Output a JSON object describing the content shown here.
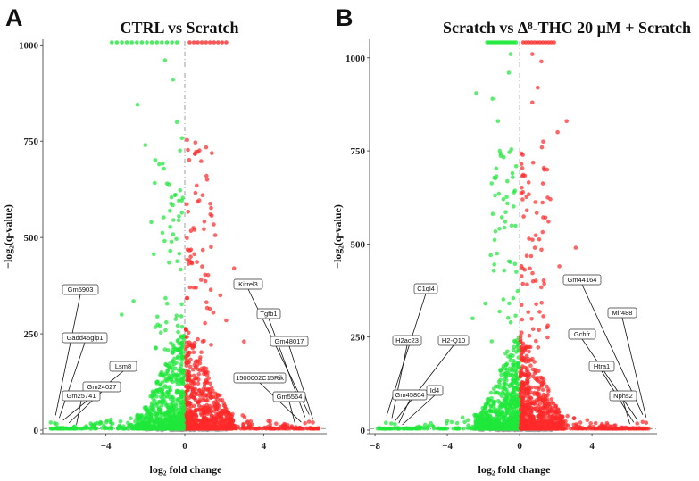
{
  "colors": {
    "up": "#ff2a2a",
    "down": "#1ee83a",
    "ns": "#9a9a9a"
  },
  "chart_data": [
    {
      "type": "scatter",
      "panel": "A",
      "title": "CTRL vs Scratch",
      "title_parts": [],
      "xlabel": "log₂ fold change",
      "ylabel": "−log₂(q-value)",
      "xlim": [
        -7.2,
        7.2
      ],
      "ylim": [
        0,
        1010
      ],
      "xticks": [
        -4,
        0,
        4
      ],
      "yticks": [
        0,
        250,
        500,
        750,
        1000
      ],
      "seed": 11,
      "points": [
        {
          "x": -2.4,
          "y": 845,
          "g": "down"
        },
        {
          "x": -1.0,
          "y": 960,
          "g": "down"
        },
        {
          "x": -0.6,
          "y": 910,
          "g": "down"
        },
        {
          "x": -0.4,
          "y": 800,
          "g": "down"
        },
        {
          "x": -2.0,
          "y": 740,
          "g": "down"
        },
        {
          "x": -1.3,
          "y": 690,
          "g": "down"
        },
        {
          "x": -0.9,
          "y": 640,
          "g": "down"
        },
        {
          "x": -0.5,
          "y": 610,
          "g": "down"
        },
        {
          "x": -2.6,
          "y": 335,
          "g": "down"
        },
        {
          "x": -3.2,
          "y": 300,
          "g": "down"
        },
        {
          "x": -1.7,
          "y": 540,
          "g": "down"
        },
        {
          "x": -0.3,
          "y": 555,
          "g": "down"
        },
        {
          "x": 0.6,
          "y": 635,
          "g": "up"
        },
        {
          "x": 0.9,
          "y": 610,
          "g": "up"
        },
        {
          "x": 1.1,
          "y": 660,
          "g": "up"
        },
        {
          "x": 2.5,
          "y": 420,
          "g": "up"
        },
        {
          "x": 0.3,
          "y": 450,
          "g": "up"
        },
        {
          "x": 0.25,
          "y": 440,
          "g": "up"
        },
        {
          "x": 1.3,
          "y": 560,
          "g": "up"
        },
        {
          "x": 1.8,
          "y": 350,
          "g": "up"
        },
        {
          "x": 2.1,
          "y": 285,
          "g": "up"
        },
        {
          "x": 0.5,
          "y": 520,
          "g": "up"
        },
        {
          "x": 3.0,
          "y": 230,
          "g": "up"
        },
        {
          "x": -6.8,
          "y": 20,
          "g": "down"
        },
        {
          "x": -6.6,
          "y": 18,
          "g": "down"
        },
        {
          "x": -6.5,
          "y": 16,
          "g": "down"
        },
        {
          "x": 6.3,
          "y": 22,
          "g": "up"
        },
        {
          "x": 6.5,
          "y": 20,
          "g": "up"
        },
        {
          "x": 6.1,
          "y": 18,
          "g": "up"
        }
      ],
      "top_hits_down": 14,
      "top_hits_up": 10,
      "top_hits_down_range": [
        -3.7,
        -0.4
      ],
      "top_hits_up_range": [
        0.25,
        2.1
      ],
      "labels": [
        {
          "text": "Gm5903",
          "x": -6.6,
          "y": 20
        },
        {
          "text": "Gadd45gip1",
          "x": -6.4,
          "y": 18
        },
        {
          "text": "Lsm8",
          "x": -6.2,
          "y": 16
        },
        {
          "text": "Gm24027",
          "x": -5.9,
          "y": 14
        },
        {
          "text": "Gm25741",
          "x": -5.5,
          "y": 12
        },
        {
          "text": "Kirrel3",
          "x": 6.3,
          "y": 22
        },
        {
          "text": "Tgfb1",
          "x": 6.1,
          "y": 20
        },
        {
          "text": "Gm48017",
          "x": 6.5,
          "y": 18
        },
        {
          "text": "1500002C15Rik",
          "x": 5.9,
          "y": 16
        },
        {
          "text": "Gm5564",
          "x": 5.6,
          "y": 14
        }
      ]
    },
    {
      "type": "scatter",
      "panel": "B",
      "title": "Scratch vs Δ⁸-THC 20 μM + Scratch",
      "title_parts": [],
      "xlabel": "log₂ fold change",
      "ylabel": "−log₂(q-value)",
      "xlim": [
        -8.3,
        7.6
      ],
      "ylim": [
        0,
        1045
      ],
      "xticks": [
        -8,
        -4,
        0,
        4
      ],
      "yticks": [
        0,
        250,
        500,
        750,
        1000
      ],
      "seed": 29,
      "points": [
        {
          "x": -2.4,
          "y": 905,
          "g": "down"
        },
        {
          "x": -1.5,
          "y": 890,
          "g": "down"
        },
        {
          "x": -1.2,
          "y": 830,
          "g": "down"
        },
        {
          "x": -0.6,
          "y": 960,
          "g": "down"
        },
        {
          "x": -0.5,
          "y": 1010,
          "g": "down"
        },
        {
          "x": -1.9,
          "y": 340,
          "g": "down"
        },
        {
          "x": -2.6,
          "y": 300,
          "g": "down"
        },
        {
          "x": -1.1,
          "y": 750,
          "g": "down"
        },
        {
          "x": -0.4,
          "y": 690,
          "g": "down"
        },
        {
          "x": -0.8,
          "y": 560,
          "g": "down"
        },
        {
          "x": -1.6,
          "y": 470,
          "g": "down"
        },
        {
          "x": -0.9,
          "y": 620,
          "g": "down"
        },
        {
          "x": 0.7,
          "y": 1010,
          "g": "up"
        },
        {
          "x": 1.2,
          "y": 990,
          "g": "up"
        },
        {
          "x": 1.0,
          "y": 920,
          "g": "up"
        },
        {
          "x": 0.7,
          "y": 880,
          "g": "up"
        },
        {
          "x": 1.3,
          "y": 775,
          "g": "up"
        },
        {
          "x": 2.6,
          "y": 830,
          "g": "up"
        },
        {
          "x": 2.1,
          "y": 800,
          "g": "up"
        },
        {
          "x": 0.1,
          "y": 715,
          "g": "up"
        },
        {
          "x": 0.4,
          "y": 590,
          "g": "up"
        },
        {
          "x": 1.7,
          "y": 620,
          "g": "up"
        },
        {
          "x": 3.1,
          "y": 490,
          "g": "up"
        },
        {
          "x": 2.2,
          "y": 440,
          "g": "up"
        },
        {
          "x": -7.4,
          "y": 20,
          "g": "down"
        },
        {
          "x": -7.1,
          "y": 18,
          "g": "down"
        },
        {
          "x": -6.9,
          "y": 16,
          "g": "down"
        },
        {
          "x": 6.8,
          "y": 22,
          "g": "up"
        },
        {
          "x": 7.0,
          "y": 20,
          "g": "up"
        },
        {
          "x": 6.5,
          "y": 18,
          "g": "up"
        }
      ],
      "top_hits_down": 16,
      "top_hits_up": 12,
      "top_hits_down_range": [
        -1.8,
        -0.2
      ],
      "top_hits_up_range": [
        0.2,
        1.9
      ],
      "labels": [
        {
          "text": "C1ql4",
          "x": -7.4,
          "y": 20
        },
        {
          "text": "H2ac23",
          "x": -7.1,
          "y": 18
        },
        {
          "text": "H2-Q10",
          "x": -6.9,
          "y": 16
        },
        {
          "text": "Gm45804",
          "x": -6.7,
          "y": 14
        },
        {
          "text": "Id4",
          "x": -6.5,
          "y": 12
        },
        {
          "text": "Gm44164",
          "x": 6.8,
          "y": 22
        },
        {
          "text": "Mir488",
          "x": 7.0,
          "y": 20
        },
        {
          "text": "Gchfr",
          "x": 6.5,
          "y": 18
        },
        {
          "text": "Htra1",
          "x": 6.3,
          "y": 16
        },
        {
          "text": "Nphs2",
          "x": 6.1,
          "y": 14
        }
      ]
    }
  ]
}
